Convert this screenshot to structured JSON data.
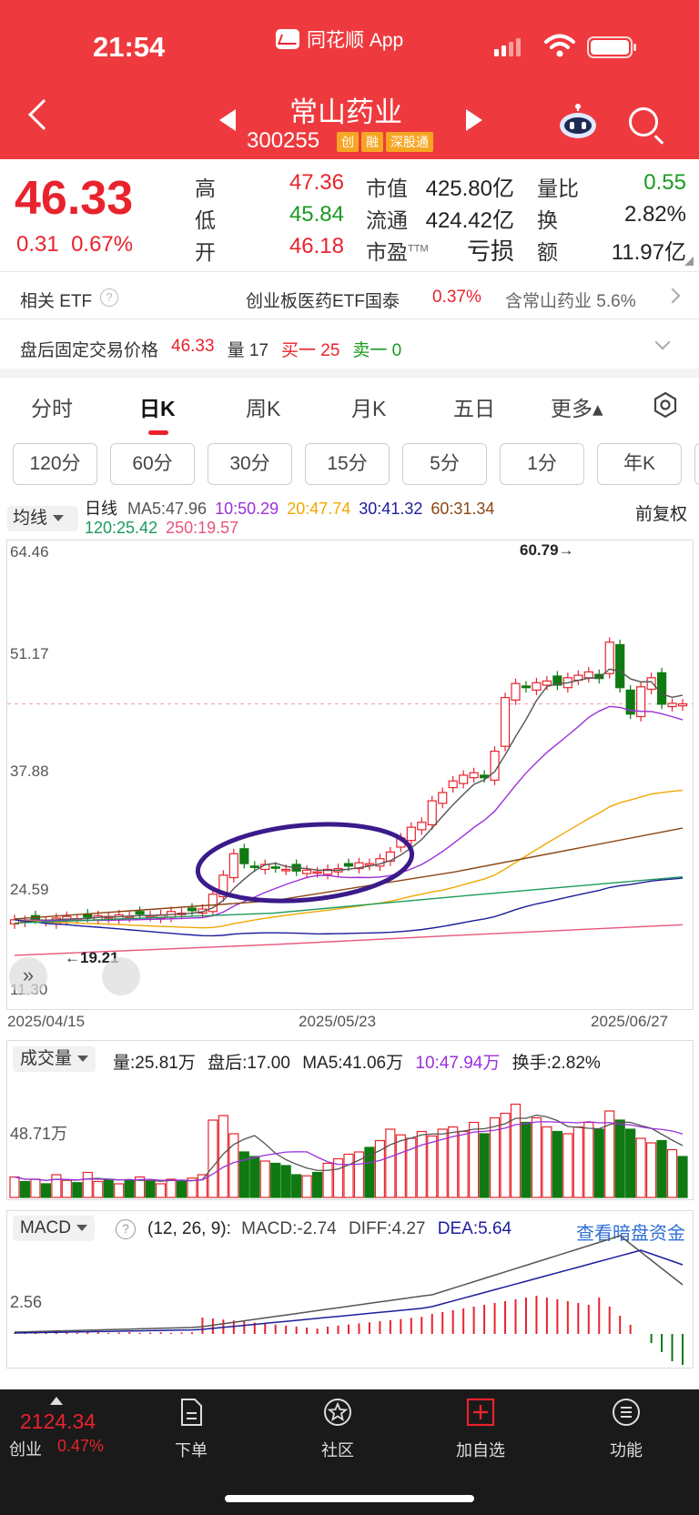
{
  "status": {
    "time": "21:54",
    "app_name": "同花顺 App"
  },
  "stock": {
    "name": "常山药业",
    "code": "300255",
    "tags": [
      "创",
      "融",
      "深股通"
    ]
  },
  "quote": {
    "price": "46.33",
    "change": "0.31",
    "change_pct": "0.67%",
    "high_label": "高",
    "high": "47.36",
    "low_label": "低",
    "low": "45.84",
    "open_label": "开",
    "open": "46.18",
    "mktcap_label": "市值",
    "mktcap": "425.80亿",
    "float_label": "流通",
    "float": "424.42亿",
    "pe_label": "市盈",
    "pe_sup": "TTM",
    "pe": "亏损",
    "volratio_label": "量比",
    "volratio": "0.55",
    "turnover_label": "换",
    "turnover": "2.82%",
    "amount_label": "额",
    "amount": "11.97亿"
  },
  "etf": {
    "label": "相关 ETF",
    "help": "?",
    "name": "创业板医药ETF国泰",
    "pct": "0.37%",
    "contains": "含常山药业 5.6%"
  },
  "after_hours": {
    "label": "盘后固定交易价格",
    "price": "46.33",
    "vol": "量 17",
    "buy": "买一 25",
    "sell": "卖一 0"
  },
  "tabs": [
    "分时",
    "日K",
    "周K",
    "月K",
    "五日",
    "更多▴"
  ],
  "periods": [
    "120分",
    "60分",
    "30分",
    "15分",
    "5分",
    "1分",
    "年K"
  ],
  "kline": {
    "indicator": "均线",
    "ma_title": "日线",
    "adjust": "前复权",
    "ma5": "MA5:47.96",
    "ma10": "10:50.29",
    "ma20": "20:47.74",
    "ma30": "30:41.32",
    "ma60": "60:31.34",
    "ma120": "120:25.42",
    "ma250": "250:19.57",
    "yticks": [
      "64.46",
      "51.17",
      "37.88",
      "24.59",
      "11.30"
    ],
    "max_label": "60.79→",
    "min_label": "←19.21",
    "dates": [
      "2025/04/15",
      "2025/05/23",
      "2025/06/27"
    ]
  },
  "volume": {
    "indicator": "成交量",
    "vol": "量:25.81万",
    "after": "盘后:17.00",
    "ma5": "MA5:41.06万",
    "ma10": "10:47.94万",
    "turnover": "换手:2.82%",
    "ytick": "48.71万"
  },
  "macd": {
    "indicator": "MACD",
    "help": "?",
    "params": "(12, 26, 9):",
    "macd": "MACD:-2.74",
    "diff": "DIFF:4.27",
    "dea": "DEA:5.64",
    "link": "查看暗盘资金",
    "ytick": "2.56"
  },
  "bottom": {
    "index_value": "2124.34",
    "index_name": "创业",
    "index_pct": "0.47%",
    "nav": [
      "下单",
      "社区",
      "加自选",
      "功能"
    ]
  },
  "colors": {
    "header": "#ee3a3e",
    "up": "#e8232d",
    "down": "#0f7a12",
    "ma5": "#555555",
    "ma10": "#9b30d9",
    "ma20": "#f0a800",
    "ma30": "#1d1d9b",
    "ma60": "#8b4513",
    "ma120": "#1a9a5a",
    "ma250": "#e8557a"
  }
}
